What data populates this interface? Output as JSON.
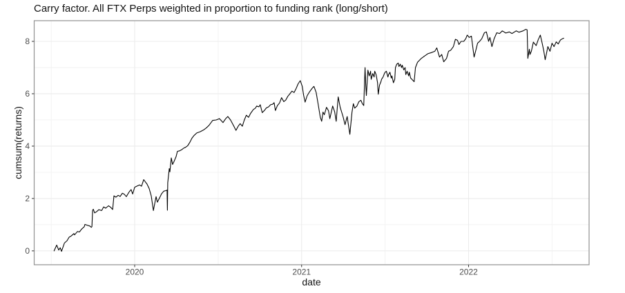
{
  "title": "Carry factor. All FTX Perps weighted in proportion to funding rank (long/short)",
  "style": {
    "background": "#ffffff",
    "panel_border": "#909090",
    "grid_major": "#ebebeb",
    "grid_minor": "#f2f2f2",
    "tick_mark": "#333333",
    "tick_label": "#4d4d4d",
    "title_color": "#111111",
    "line_color": "#000000"
  },
  "chart_data": {
    "type": "line",
    "title": "Carry factor. All FTX Perps weighted in proportion to funding rank (long/short)",
    "xlabel": "date",
    "ylabel": "cumsum(returns)",
    "legend": false,
    "grid": true,
    "xlim": [
      2019.398,
      2022.722
    ],
    "ylim": [
      -0.53,
      8.79
    ],
    "x_tick_values": [
      2020,
      2021,
      2022
    ],
    "x_tick_labels": [
      "2020",
      "2021",
      "2022"
    ],
    "x_minor_ticks": [
      2019.5,
      2020.5,
      2021.5,
      2022.5
    ],
    "y_tick_values": [
      0,
      2,
      4,
      6,
      8
    ],
    "y_tick_labels": [
      "0",
      "2",
      "4",
      "6",
      "8"
    ],
    "y_minor_ticks": [
      1,
      3,
      5,
      7
    ],
    "series": [
      {
        "name": "cumsum(returns)",
        "color": "#000000",
        "points": [
          [
            2019.517,
            0.0
          ],
          [
            2019.533,
            0.22
          ],
          [
            2019.545,
            0.03
          ],
          [
            2019.554,
            0.12
          ],
          [
            2019.562,
            -0.02
          ],
          [
            2019.579,
            0.3
          ],
          [
            2019.595,
            0.39
          ],
          [
            2019.607,
            0.52
          ],
          [
            2019.62,
            0.57
          ],
          [
            2019.636,
            0.66
          ],
          [
            2019.64,
            0.61
          ],
          [
            2019.657,
            0.74
          ],
          [
            2019.669,
            0.72
          ],
          [
            2019.682,
            0.83
          ],
          [
            2019.698,
            0.92
          ],
          [
            2019.702,
            1.01
          ],
          [
            2019.719,
            0.97
          ],
          [
            2019.731,
            0.95
          ],
          [
            2019.74,
            0.9
          ],
          [
            2019.744,
            0.92
          ],
          [
            2019.748,
            1.55
          ],
          [
            2019.752,
            1.59
          ],
          [
            2019.76,
            1.45
          ],
          [
            2019.773,
            1.5
          ],
          [
            2019.785,
            1.57
          ],
          [
            2019.802,
            1.54
          ],
          [
            2019.814,
            1.68
          ],
          [
            2019.826,
            1.63
          ],
          [
            2019.843,
            1.72
          ],
          [
            2019.855,
            1.67
          ],
          [
            2019.868,
            1.58
          ],
          [
            2019.876,
            2.1
          ],
          [
            2019.888,
            2.05
          ],
          [
            2019.901,
            2.12
          ],
          [
            2019.913,
            2.08
          ],
          [
            2019.926,
            2.2
          ],
          [
            2019.938,
            2.16
          ],
          [
            2019.95,
            2.07
          ],
          [
            2019.967,
            2.25
          ],
          [
            2019.979,
            2.34
          ],
          [
            2019.988,
            2.17
          ],
          [
            2020.0,
            2.43
          ],
          [
            2020.012,
            2.47
          ],
          [
            2020.029,
            2.52
          ],
          [
            2020.041,
            2.47
          ],
          [
            2020.054,
            2.72
          ],
          [
            2020.062,
            2.65
          ],
          [
            2020.074,
            2.55
          ],
          [
            2020.087,
            2.38
          ],
          [
            2020.099,
            2.1
          ],
          [
            2020.112,
            1.54
          ],
          [
            2020.12,
            1.8
          ],
          [
            2020.128,
            2.07
          ],
          [
            2020.136,
            1.86
          ],
          [
            2020.149,
            2.02
          ],
          [
            2020.161,
            2.18
          ],
          [
            2020.174,
            2.28
          ],
          [
            2020.186,
            2.3
          ],
          [
            2020.194,
            2.32
          ],
          [
            2020.196,
            1.55
          ],
          [
            2020.198,
            2.6
          ],
          [
            2020.207,
            3.14
          ],
          [
            2020.211,
            3.02
          ],
          [
            2020.219,
            3.55
          ],
          [
            2020.227,
            3.3
          ],
          [
            2020.236,
            3.42
          ],
          [
            2020.248,
            3.6
          ],
          [
            2020.256,
            3.8
          ],
          [
            2020.269,
            3.82
          ],
          [
            2020.281,
            3.86
          ],
          [
            2020.293,
            3.92
          ],
          [
            2020.306,
            3.96
          ],
          [
            2020.318,
            4.02
          ],
          [
            2020.331,
            4.15
          ],
          [
            2020.343,
            4.3
          ],
          [
            2020.355,
            4.4
          ],
          [
            2020.372,
            4.5
          ],
          [
            2020.393,
            4.55
          ],
          [
            2020.413,
            4.62
          ],
          [
            2020.43,
            4.7
          ],
          [
            2020.446,
            4.8
          ],
          [
            2020.467,
            4.98
          ],
          [
            2020.488,
            5.0
          ],
          [
            2020.508,
            5.05
          ],
          [
            2020.529,
            4.9
          ],
          [
            2020.545,
            5.05
          ],
          [
            2020.558,
            5.13
          ],
          [
            2020.574,
            5.0
          ],
          [
            2020.591,
            4.8
          ],
          [
            2020.607,
            4.6
          ],
          [
            2020.62,
            4.76
          ],
          [
            2020.632,
            4.86
          ],
          [
            2020.645,
            4.76
          ],
          [
            2020.657,
            5.0
          ],
          [
            2020.669,
            5.18
          ],
          [
            2020.682,
            5.1
          ],
          [
            2020.694,
            5.25
          ],
          [
            2020.711,
            5.4
          ],
          [
            2020.723,
            5.45
          ],
          [
            2020.731,
            5.53
          ],
          [
            2020.744,
            5.5
          ],
          [
            2020.752,
            5.58
          ],
          [
            2020.764,
            5.28
          ],
          [
            2020.777,
            5.36
          ],
          [
            2020.789,
            5.46
          ],
          [
            2020.802,
            5.5
          ],
          [
            2020.814,
            5.58
          ],
          [
            2020.826,
            5.6
          ],
          [
            2020.835,
            5.66
          ],
          [
            2020.843,
            5.36
          ],
          [
            2020.855,
            5.55
          ],
          [
            2020.868,
            5.65
          ],
          [
            2020.88,
            5.85
          ],
          [
            2020.893,
            5.7
          ],
          [
            2020.905,
            5.76
          ],
          [
            2020.917,
            5.9
          ],
          [
            2020.93,
            6.0
          ],
          [
            2020.942,
            6.1
          ],
          [
            2020.955,
            6.05
          ],
          [
            2020.967,
            6.2
          ],
          [
            2020.979,
            6.38
          ],
          [
            2020.992,
            6.5
          ],
          [
            2021.004,
            6.28
          ],
          [
            2021.012,
            5.95
          ],
          [
            2021.021,
            5.68
          ],
          [
            2021.033,
            5.92
          ],
          [
            2021.045,
            6.05
          ],
          [
            2021.062,
            6.2
          ],
          [
            2021.074,
            6.28
          ],
          [
            2021.087,
            6.05
          ],
          [
            2021.099,
            5.6
          ],
          [
            2021.112,
            5.1
          ],
          [
            2021.12,
            4.95
          ],
          [
            2021.128,
            5.3
          ],
          [
            2021.136,
            5.2
          ],
          [
            2021.149,
            5.48
          ],
          [
            2021.161,
            5.35
          ],
          [
            2021.169,
            5.05
          ],
          [
            2021.186,
            5.53
          ],
          [
            2021.198,
            5.31
          ],
          [
            2021.207,
            4.95
          ],
          [
            2021.219,
            5.88
          ],
          [
            2021.231,
            5.48
          ],
          [
            2021.248,
            5.13
          ],
          [
            2021.26,
            4.82
          ],
          [
            2021.273,
            5.13
          ],
          [
            2021.289,
            4.45
          ],
          [
            2021.302,
            5.3
          ],
          [
            2021.31,
            5.62
          ],
          [
            2021.318,
            5.45
          ],
          [
            2021.331,
            5.53
          ],
          [
            2021.343,
            5.7
          ],
          [
            2021.355,
            5.75
          ],
          [
            2021.364,
            5.62
          ],
          [
            2021.372,
            5.55
          ],
          [
            2021.38,
            7.0
          ],
          [
            2021.384,
            6.33
          ],
          [
            2021.388,
            5.93
          ],
          [
            2021.397,
            6.9
          ],
          [
            2021.405,
            6.68
          ],
          [
            2021.413,
            6.86
          ],
          [
            2021.417,
            6.55
          ],
          [
            2021.426,
            6.77
          ],
          [
            2021.434,
            6.64
          ],
          [
            2021.438,
            6.86
          ],
          [
            2021.446,
            6.73
          ],
          [
            2021.455,
            6.42
          ],
          [
            2021.459,
            5.98
          ],
          [
            2021.467,
            6.33
          ],
          [
            2021.475,
            6.46
          ],
          [
            2021.479,
            6.55
          ],
          [
            2021.488,
            6.64
          ],
          [
            2021.496,
            6.77
          ],
          [
            2021.5,
            6.82
          ],
          [
            2021.508,
            6.86
          ],
          [
            2021.517,
            6.64
          ],
          [
            2021.521,
            6.73
          ],
          [
            2021.529,
            6.82
          ],
          [
            2021.537,
            6.6
          ],
          [
            2021.541,
            6.68
          ],
          [
            2021.55,
            6.42
          ],
          [
            2021.558,
            6.55
          ],
          [
            2021.562,
            7.0
          ],
          [
            2021.57,
            7.13
          ],
          [
            2021.579,
            7.17
          ],
          [
            2021.583,
            7.04
          ],
          [
            2021.591,
            7.13
          ],
          [
            2021.599,
            7.0
          ],
          [
            2021.603,
            7.09
          ],
          [
            2021.612,
            6.91
          ],
          [
            2021.62,
            7.0
          ],
          [
            2021.624,
            6.73
          ],
          [
            2021.632,
            6.86
          ],
          [
            2021.641,
            6.68
          ],
          [
            2021.645,
            6.82
          ],
          [
            2021.653,
            6.6
          ],
          [
            2021.661,
            6.55
          ],
          [
            2021.674,
            6.46
          ],
          [
            2021.682,
            7.0
          ],
          [
            2021.694,
            7.2
          ],
          [
            2021.715,
            7.34
          ],
          [
            2021.736,
            7.44
          ],
          [
            2021.756,
            7.53
          ],
          [
            2021.777,
            7.57
          ],
          [
            2021.798,
            7.62
          ],
          [
            2021.81,
            7.75
          ],
          [
            2021.826,
            7.4
          ],
          [
            2021.839,
            7.5
          ],
          [
            2021.851,
            7.22
          ],
          [
            2021.868,
            7.35
          ],
          [
            2021.88,
            7.62
          ],
          [
            2021.893,
            7.66
          ],
          [
            2021.909,
            7.8
          ],
          [
            2021.921,
            8.08
          ],
          [
            2021.934,
            8.04
          ],
          [
            2021.942,
            7.88
          ],
          [
            2021.955,
            8.0
          ],
          [
            2021.971,
            8.0
          ],
          [
            2021.983,
            8.1
          ],
          [
            2021.992,
            8.24
          ],
          [
            2022.004,
            8.15
          ],
          [
            2022.017,
            8.2
          ],
          [
            2022.025,
            7.8
          ],
          [
            2022.033,
            7.4
          ],
          [
            2022.045,
            7.7
          ],
          [
            2022.054,
            7.93
          ],
          [
            2022.066,
            8.0
          ],
          [
            2022.079,
            8.1
          ],
          [
            2022.095,
            8.33
          ],
          [
            2022.107,
            8.36
          ],
          [
            2022.12,
            8.0
          ],
          [
            2022.128,
            8.15
          ],
          [
            2022.14,
            7.8
          ],
          [
            2022.153,
            8.1
          ],
          [
            2022.169,
            8.33
          ],
          [
            2022.186,
            8.3
          ],
          [
            2022.202,
            8.4
          ],
          [
            2022.223,
            8.32
          ],
          [
            2022.244,
            8.36
          ],
          [
            2022.26,
            8.3
          ],
          [
            2022.285,
            8.4
          ],
          [
            2022.302,
            8.35
          ],
          [
            2022.326,
            8.4
          ],
          [
            2022.343,
            8.46
          ],
          [
            2022.351,
            8.44
          ],
          [
            2022.355,
            7.35
          ],
          [
            2022.364,
            7.7
          ],
          [
            2022.368,
            7.5
          ],
          [
            2022.376,
            7.62
          ],
          [
            2022.388,
            7.97
          ],
          [
            2022.405,
            7.84
          ],
          [
            2022.417,
            8.06
          ],
          [
            2022.43,
            8.24
          ],
          [
            2022.442,
            7.9
          ],
          [
            2022.451,
            7.62
          ],
          [
            2022.459,
            7.3
          ],
          [
            2022.467,
            7.55
          ],
          [
            2022.475,
            7.8
          ],
          [
            2022.488,
            7.62
          ],
          [
            2022.5,
            7.93
          ],
          [
            2022.512,
            7.8
          ],
          [
            2022.525,
            7.98
          ],
          [
            2022.537,
            7.9
          ],
          [
            2022.55,
            8.05
          ],
          [
            2022.562,
            8.1
          ],
          [
            2022.57,
            8.12
          ]
        ]
      }
    ]
  }
}
